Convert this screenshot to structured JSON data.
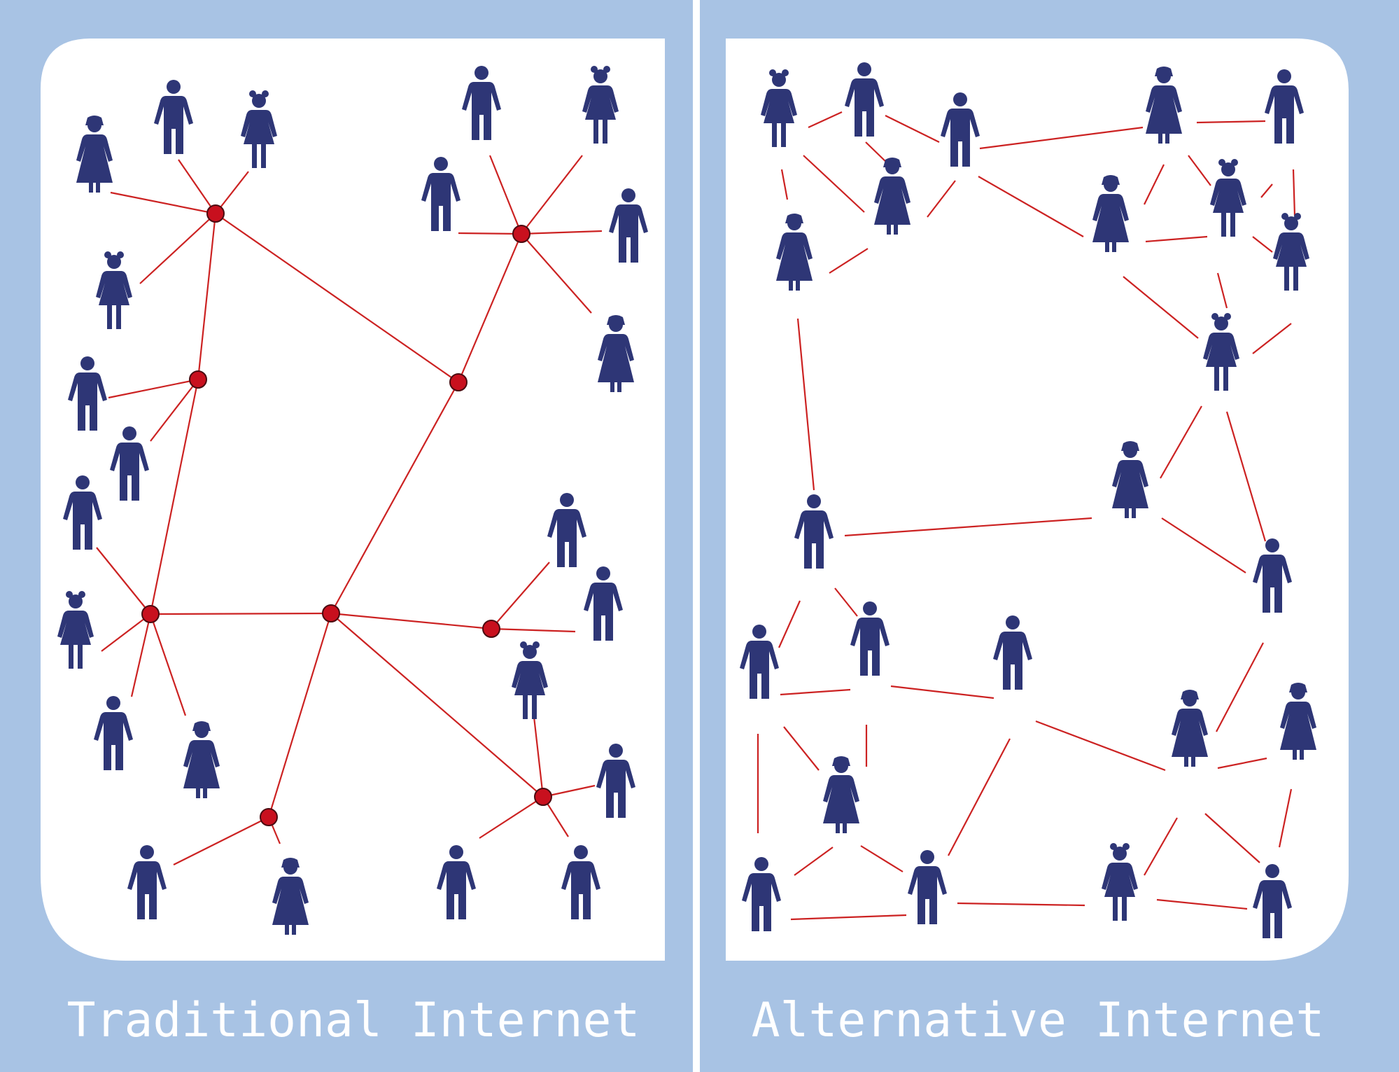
{
  "colors": {
    "frame": "#a8c3e4",
    "panel": "#ffffff",
    "person": "#2e3676",
    "link": "#cc2222",
    "node": "#c8101e",
    "caption": "#ffffff"
  },
  "left_panel": {
    "caption": "Traditional Internet",
    "structure": "hub-and-spoke (centralized relay nodes)"
  },
  "right_panel": {
    "caption": "Alternative Internet",
    "structure": "peer-to-peer mesh (people connected directly)"
  },
  "icons": [
    "person-man-icon",
    "person-woman-dress-icon",
    "person-girl-icon",
    "relay-node-icon"
  ]
}
